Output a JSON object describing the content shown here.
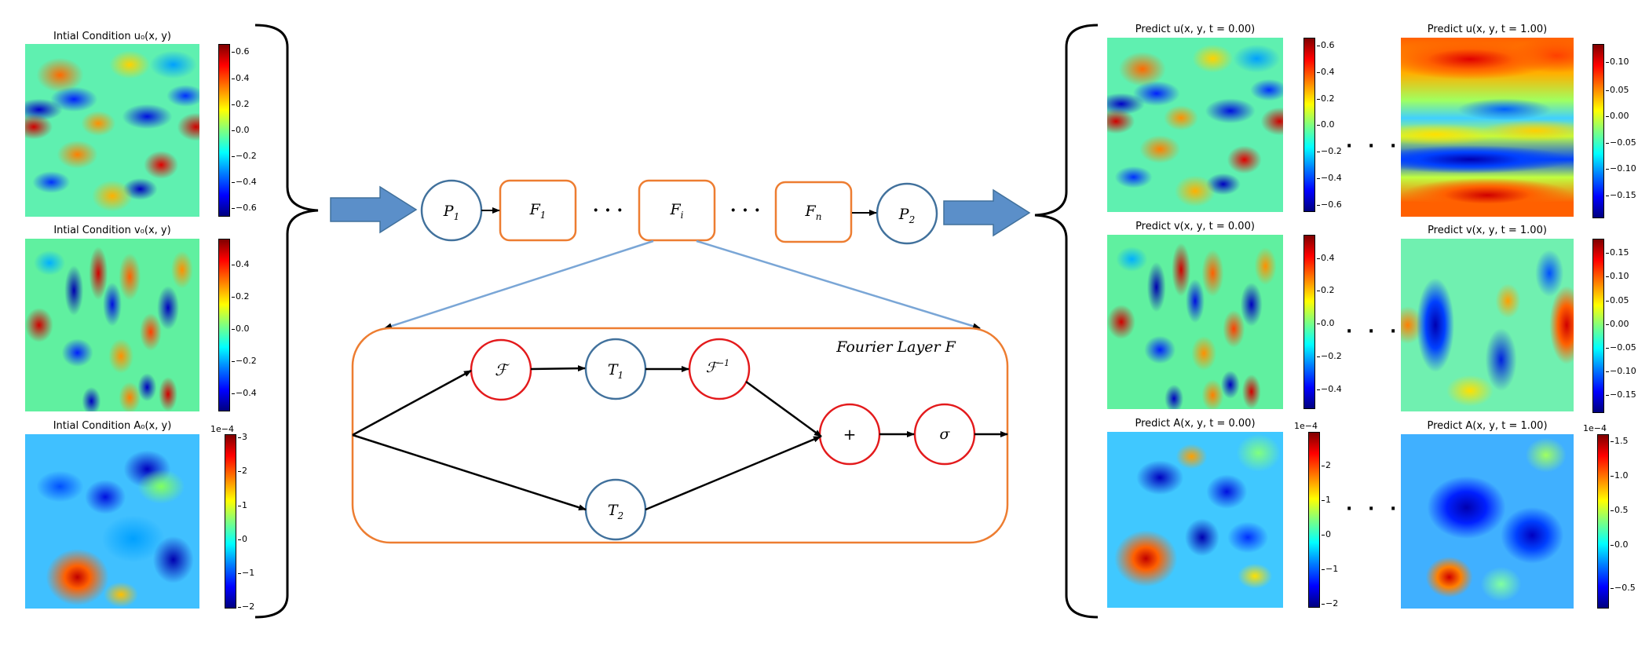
{
  "inputs": [
    {
      "title": "Intial Condition u₀(x, y)",
      "ticks": [
        "0.6",
        "0.4",
        "0.2",
        "0.0",
        "−0.2",
        "−0.4",
        "−0.6"
      ],
      "exponent": ""
    },
    {
      "title": "Intial Condition v₀(x, y)",
      "ticks": [
        "0.4",
        "0.2",
        "0.0",
        "−0.2",
        "−0.4"
      ],
      "exponent": ""
    },
    {
      "title": "Intial Condition A₀(x, y)",
      "ticks": [
        "3",
        "2",
        "1",
        "0",
        "−1",
        "−2"
      ],
      "exponent": "1e−4"
    }
  ],
  "outputs_t0": [
    {
      "title": "Predict u(x, y, t = 0.00)",
      "ticks": [
        "0.6",
        "0.4",
        "0.2",
        "0.0",
        "−0.2",
        "−0.4",
        "−0.6"
      ],
      "exponent": ""
    },
    {
      "title": "Predict v(x, y, t = 0.00)",
      "ticks": [
        "0.4",
        "0.2",
        "0.0",
        "−0.2",
        "−0.4"
      ],
      "exponent": ""
    },
    {
      "title": "Predict A(x, y, t = 0.00)",
      "ticks": [
        "2",
        "1",
        "0",
        "−1",
        "−2"
      ],
      "exponent": "1e−4"
    }
  ],
  "outputs_t1": [
    {
      "title": "Predict u(x, y, t = 1.00)",
      "ticks": [
        "0.10",
        "0.05",
        "0.00",
        "−0.05",
        "−0.10",
        "−0.15"
      ],
      "exponent": ""
    },
    {
      "title": "Predict v(x, y, t = 1.00)",
      "ticks": [
        "0.15",
        "0.10",
        "0.05",
        "0.00",
        "−0.05",
        "−0.10",
        "−0.15"
      ],
      "exponent": ""
    },
    {
      "title": "Predict A(x, y, t = 1.00)",
      "ticks": [
        "1.5",
        "1.0",
        "0.5",
        "0.0",
        "−0.5"
      ],
      "exponent": "1e−4"
    }
  ],
  "pipeline": {
    "p1": "P",
    "p1_sub": "1",
    "f1": "F",
    "f1_sub": "1",
    "fi": "F",
    "fi_sub": "i",
    "fn": "F",
    "fn_sub": "n",
    "p2": "P",
    "p2_sub": "2",
    "ellipsis": "· · ·"
  },
  "fourier_layer": {
    "label": "Fourier Layer F",
    "fft": "ℱ",
    "t1": "T",
    "t1_sub": "1",
    "ifft": "ℱ",
    "ifft_sup": "−1",
    "t2": "T",
    "t2_sub": "2",
    "plus": "+",
    "sigma": "σ"
  },
  "colors": {
    "arrow_fill": "#5b8fc9",
    "p_node_stroke": "#41719c",
    "f_box_stroke": "#ed7d31",
    "fourier_red": "#e31a1c",
    "connector_blue": "#7aa6d6"
  }
}
